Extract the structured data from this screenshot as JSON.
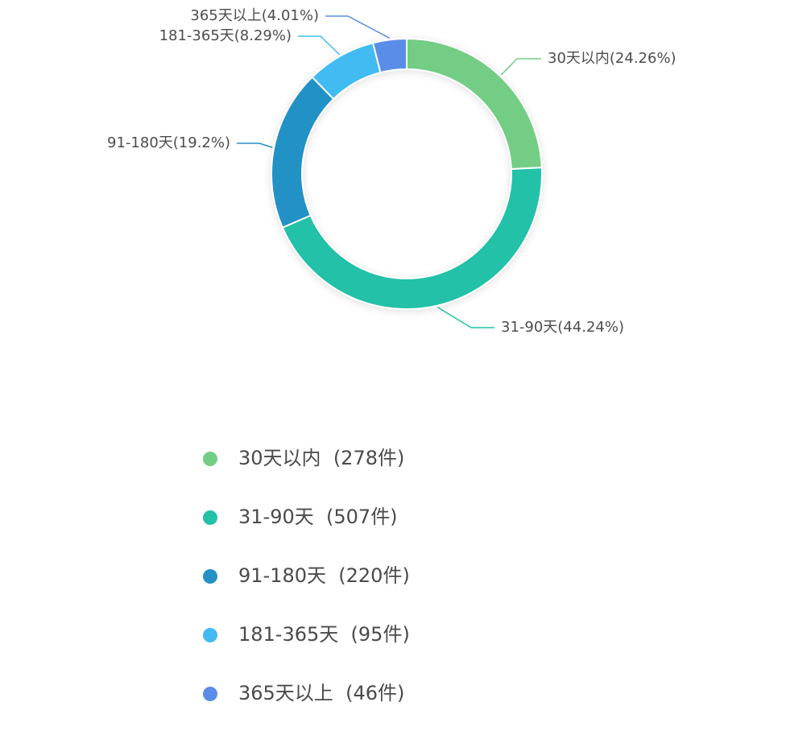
{
  "chart_data": {
    "type": "pie",
    "variant": "donut",
    "title": "",
    "legend_placement": "bottom",
    "categories": [
      "30天以内",
      "31-90天",
      "91-180天",
      "181-365天",
      "365天以上"
    ],
    "values": [
      278,
      507,
      220,
      95,
      46
    ],
    "unit": "件",
    "percent_labels": [
      "30天以内(24.26%)",
      "31-90天(44.24%)",
      "91-180天(19.2%)",
      "181-365天(8.29%)",
      "365天以上(4.01%)"
    ],
    "legend_entries": [
      {
        "name": "30天以内",
        "count": "(278件)"
      },
      {
        "name": "31-90天",
        "count": "(507件)"
      },
      {
        "name": "91-180天",
        "count": "(220件)"
      },
      {
        "name": "181-365天",
        "count": "(95件)"
      },
      {
        "name": "365天以上",
        "count": "(46件)"
      }
    ],
    "colors": [
      "#73cd85",
      "#22c1a8",
      "#2391c5",
      "#43bbf2",
      "#5a8de8"
    ]
  }
}
